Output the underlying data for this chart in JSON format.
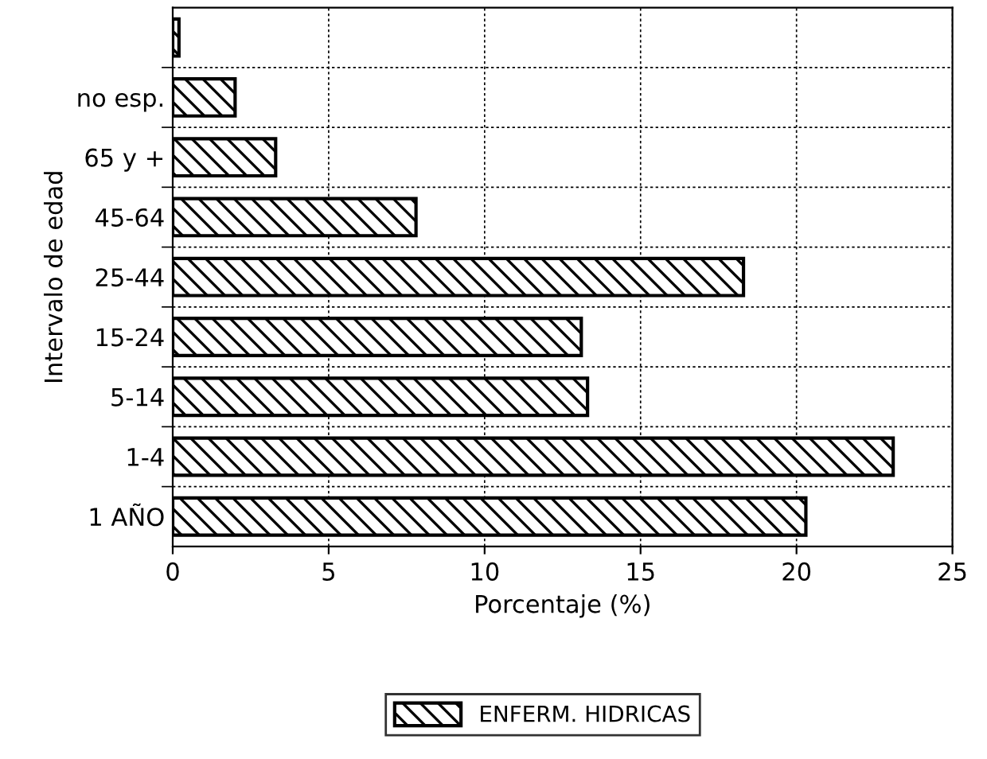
{
  "chart_data": {
    "type": "bar",
    "orientation": "horizontal",
    "xlabel": "Porcentaje (%)",
    "ylabel": "Intervalo de edad",
    "categories": [
      null,
      "no esp.",
      "65 y +",
      "45-64",
      "25-44",
      "15-24",
      "5-14",
      "1-4",
      "1 AÑO"
    ],
    "series": [
      {
        "name": "ENFERM. HIDRICAS",
        "color": "#000000",
        "values": [
          0.2,
          2.0,
          3.3,
          7.8,
          18.3,
          13.1,
          13.3,
          23.1,
          20.3
        ]
      }
    ],
    "xlim": [
      0,
      25
    ],
    "xticks": [
      0,
      5,
      10,
      15,
      20,
      25
    ],
    "grid": true,
    "legend": "bottom"
  }
}
